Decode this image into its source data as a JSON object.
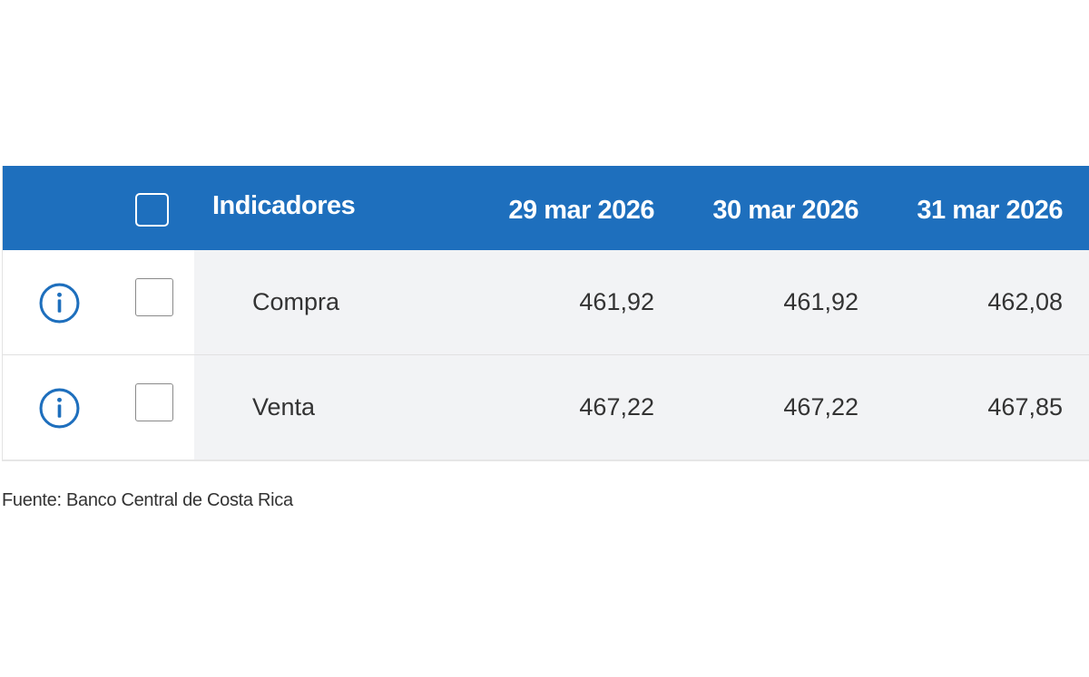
{
  "table": {
    "header": {
      "indicators_label": "Indicadores",
      "dates": [
        "29 mar 2026",
        "30 mar 2026",
        "31 mar 2026"
      ]
    },
    "rows": [
      {
        "label": "Compra",
        "values": [
          "461,92",
          "461,92",
          "462,08"
        ]
      },
      {
        "label": "Venta",
        "values": [
          "467,22",
          "467,22",
          "467,85"
        ]
      }
    ]
  },
  "footer": {
    "source": "Fuente: Banco Central de Costa Rica"
  },
  "colors": {
    "header_bg": "#1e6fbd",
    "row_shade": "#f2f3f5",
    "info_icon": "#1e6fbd"
  },
  "icons": {
    "row_icon": "info-circle-icon",
    "checkbox": "checkbox-empty"
  }
}
